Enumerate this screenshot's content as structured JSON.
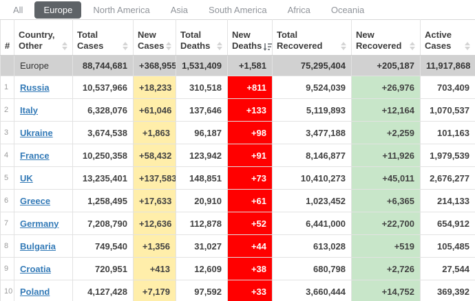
{
  "tabs": [
    {
      "label": "All",
      "active": false
    },
    {
      "label": "Europe",
      "active": true
    },
    {
      "label": "North America",
      "active": false
    },
    {
      "label": "Asia",
      "active": false
    },
    {
      "label": "South America",
      "active": false
    },
    {
      "label": "Africa",
      "active": false
    },
    {
      "label": "Oceania",
      "active": false
    }
  ],
  "colors": {
    "active_tab_bg": "#5e6367",
    "new_cases_bg": "#FFEEAA",
    "new_deaths_bg": "#FF0000",
    "new_recovered_bg": "#c8e6c9",
    "summary_row_bg": "#d1d1d1",
    "country_link": "#337ab7"
  },
  "table": {
    "headers": [
      {
        "key": "rank",
        "label": "#",
        "sort": "none"
      },
      {
        "key": "country",
        "label": "Country, Other",
        "sort": "inactive"
      },
      {
        "key": "total_cases",
        "label": "Total Cases",
        "sort": "inactive"
      },
      {
        "key": "new_cases",
        "label": "New Cases",
        "sort": "inactive"
      },
      {
        "key": "total_deaths",
        "label": "Total Deaths",
        "sort": "inactive"
      },
      {
        "key": "new_deaths",
        "label": "New Deaths",
        "sort": "desc"
      },
      {
        "key": "total_recovered",
        "label": "Total Recovered",
        "sort": "inactive"
      },
      {
        "key": "new_recovered",
        "label": "New Recovered",
        "sort": "inactive"
      },
      {
        "key": "active_cases",
        "label": "Active Cases",
        "sort": "inactive"
      }
    ],
    "summary_row": {
      "rank": "",
      "country": "Europe",
      "total_cases": "88,744,681",
      "new_cases": "+368,955",
      "total_deaths": "1,531,409",
      "new_deaths": "+1,581",
      "total_recovered": "75,295,404",
      "new_recovered": "+205,187",
      "active_cases": "11,917,868"
    },
    "rows": [
      {
        "rank": "1",
        "country": "Russia",
        "total_cases": "10,537,966",
        "new_cases": "+18,233",
        "total_deaths": "310,518",
        "new_deaths": "+811",
        "total_recovered": "9,524,039",
        "new_recovered": "+26,976",
        "active_cases": "703,409"
      },
      {
        "rank": "2",
        "country": "Italy",
        "total_cases": "6,328,076",
        "new_cases": "+61,046",
        "total_deaths": "137,646",
        "new_deaths": "+133",
        "total_recovered": "5,119,893",
        "new_recovered": "+12,164",
        "active_cases": "1,070,537"
      },
      {
        "rank": "3",
        "country": "Ukraine",
        "total_cases": "3,674,538",
        "new_cases": "+1,863",
        "total_deaths": "96,187",
        "new_deaths": "+98",
        "total_recovered": "3,477,188",
        "new_recovered": "+2,259",
        "active_cases": "101,163"
      },
      {
        "rank": "4",
        "country": "France",
        "total_cases": "10,250,358",
        "new_cases": "+58,432",
        "total_deaths": "123,942",
        "new_deaths": "+91",
        "total_recovered": "8,146,877",
        "new_recovered": "+11,926",
        "active_cases": "1,979,539"
      },
      {
        "rank": "5",
        "country": "UK",
        "total_cases": "13,235,401",
        "new_cases": "+137,583",
        "total_deaths": "148,851",
        "new_deaths": "+73",
        "total_recovered": "10,410,273",
        "new_recovered": "+45,011",
        "active_cases": "2,676,277"
      },
      {
        "rank": "6",
        "country": "Greece",
        "total_cases": "1,258,495",
        "new_cases": "+17,633",
        "total_deaths": "20,910",
        "new_deaths": "+61",
        "total_recovered": "1,023,452",
        "new_recovered": "+6,365",
        "active_cases": "214,133"
      },
      {
        "rank": "7",
        "country": "Germany",
        "total_cases": "7,208,790",
        "new_cases": "+12,636",
        "total_deaths": "112,878",
        "new_deaths": "+52",
        "total_recovered": "6,441,000",
        "new_recovered": "+22,700",
        "active_cases": "654,912"
      },
      {
        "rank": "8",
        "country": "Bulgaria",
        "total_cases": "749,540",
        "new_cases": "+1,356",
        "total_deaths": "31,027",
        "new_deaths": "+44",
        "total_recovered": "613,028",
        "new_recovered": "+519",
        "active_cases": "105,485"
      },
      {
        "rank": "9",
        "country": "Croatia",
        "total_cases": "720,951",
        "new_cases": "+413",
        "total_deaths": "12,609",
        "new_deaths": "+38",
        "total_recovered": "680,798",
        "new_recovered": "+2,726",
        "active_cases": "27,544"
      },
      {
        "rank": "10",
        "country": "Poland",
        "total_cases": "4,127,428",
        "new_cases": "+7,179",
        "total_deaths": "97,592",
        "new_deaths": "+33",
        "total_recovered": "3,660,444",
        "new_recovered": "+14,752",
        "active_cases": "369,392"
      }
    ]
  }
}
